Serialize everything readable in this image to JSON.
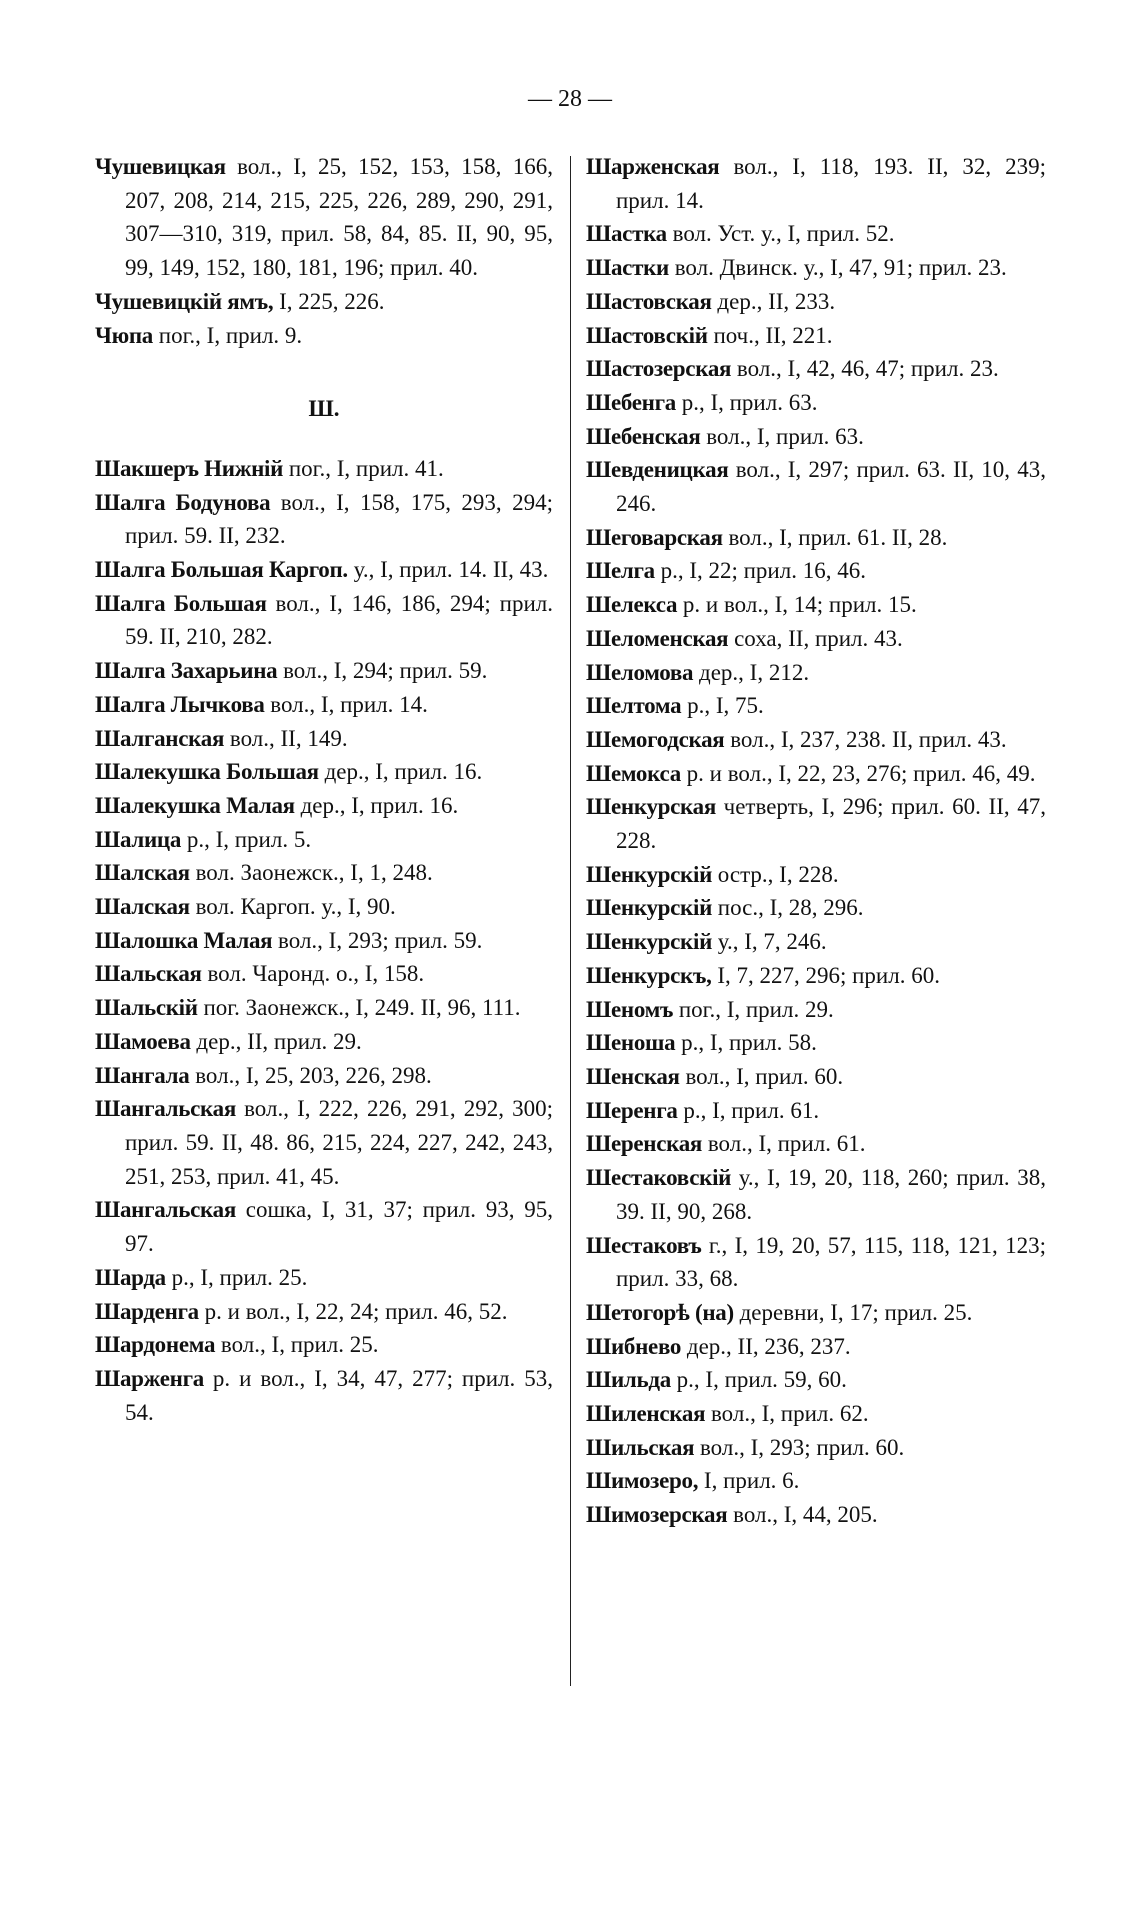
{
  "page_number": "— 28 —",
  "columns": [
    {
      "groups": [
        {
          "entries": [
            {
              "head": "Чушевицкая",
              "text": "вол., I, 25, 152, 153, 158, 166, 207, 208, 214, 215, 225, 226, 289, 290, 291, 307—310, 319, прил. 58, 84, 85. II, 90, 95, 99, 149, 152, 180, 181, 196; прил. 40."
            },
            {
              "head": "Чушевицкій ямъ,",
              "text": "I, 225, 226."
            },
            {
              "head": "Чюпа",
              "text": "пог., I, прил. 9."
            }
          ]
        },
        {
          "heading": "Ш.",
          "entries": [
            {
              "head": "Шакшеръ Нижній",
              "text": "пог., I, прил. 41."
            },
            {
              "head": "Шалга Бодунова",
              "text": "вол., I, 158, 175, 293, 294; прил. 59. II, 232."
            },
            {
              "head": "Шалга Большая Каргоп.",
              "text": "у., I, прил. 14. II, 43."
            },
            {
              "head": "Шалга Большая",
              "text": "вол., I, 146, 186, 294; прил. 59. II, 210, 282."
            },
            {
              "head": "Шалга Захарьина",
              "text": "вол., I, 294; прил. 59."
            },
            {
              "head": "Шалга Лычкова",
              "text": "вол., I, прил. 14."
            },
            {
              "head": "Шалганская",
              "text": "вол., II, 149."
            },
            {
              "head": "Шалекушка Большая",
              "text": "дер., I, прил. 16."
            },
            {
              "head": "Шалекушка Малая",
              "text": "дер., I, прил. 16."
            },
            {
              "head": "Шалица",
              "text": "р., I, прил. 5."
            },
            {
              "head": "Шалская",
              "text": "вол. Заонежск., I, 1, 248."
            },
            {
              "head": "Шалская",
              "text": "вол. Каргоп. у., I, 90."
            },
            {
              "head": "Шалошка Малая",
              "text": "вол., I, 293; прил. 59."
            },
            {
              "head": "Шальская",
              "text": "вол. Чаронд. о., I, 158."
            },
            {
              "head": "Шальскій",
              "text": "пог. Заонежск., I, 249. II, 96, 111."
            },
            {
              "head": "Шамоева",
              "text": "дер., II, прил. 29."
            },
            {
              "head": "Шангала",
              "text": "вол., I, 25, 203, 226, 298."
            },
            {
              "head": "Шангальская",
              "text": "вол., I, 222, 226, 291, 292, 300; прил. 59. II, 48. 86, 215, 224, 227, 242, 243, 251, 253, прил. 41, 45."
            },
            {
              "head": "Шангальская",
              "text": "сошка, I, 31, 37; прил. 93, 95, 97."
            },
            {
              "head": "Шарда",
              "text": "р., I, прил. 25."
            },
            {
              "head": "Шарденга",
              "text": "р. и вол., I, 22, 24; прил. 46, 52."
            },
            {
              "head": "Шардонема",
              "text": "вол., I, прил. 25."
            },
            {
              "head": "Шарженга",
              "text": "р. и вол., I, 34, 47, 277; прил. 53, 54."
            }
          ]
        }
      ]
    },
    {
      "groups": [
        {
          "entries": [
            {
              "head": "Шарженская",
              "text": "вол., I, 118, 193. II, 32, 239; прил. 14."
            },
            {
              "head": "Шастка",
              "text": "вол. Уст. у., I, прил. 52."
            },
            {
              "head": "Шастки",
              "text": "вол. Двинск. у., I, 47, 91; прил. 23."
            },
            {
              "head": "Шастовская",
              "text": "дер., II, 233."
            },
            {
              "head": "Шастовскій",
              "text": "поч., II, 221."
            },
            {
              "head": "Шастозерская",
              "text": "вол., I, 42, 46, 47; прил. 23."
            },
            {
              "head": "Шебенга",
              "text": "р., I, прил. 63."
            },
            {
              "head": "Шебенская",
              "text": "вол., I, прил. 63."
            },
            {
              "head": "Шевденицкая",
              "text": "вол., I, 297; прил. 63. II, 10, 43, 246."
            },
            {
              "head": "Шеговарская",
              "text": "вол., I, прил. 61. II, 28."
            },
            {
              "head": "Шелга",
              "text": "р., I, 22; прил. 16, 46."
            },
            {
              "head": "Шелекса",
              "text": "р. и вол., I, 14; прил. 15."
            },
            {
              "head": "Шеломенская",
              "text": "соха, II, прил. 43."
            },
            {
              "head": "Шеломова",
              "text": "дер., I, 212."
            },
            {
              "head": "Шелтома",
              "text": "р., I, 75."
            },
            {
              "head": "Шемогодская",
              "text": "вол., I, 237, 238. II, прил. 43."
            },
            {
              "head": "Шемокса",
              "text": "р. и вол., I, 22, 23, 276; прил. 46, 49."
            },
            {
              "head": "Шенкурская",
              "text": "четверть, I, 296; прил. 60. II, 47, 228."
            },
            {
              "head": "Шенкурскій",
              "text": "остр., I, 228."
            },
            {
              "head": "Шенкурскій",
              "text": "пос., I, 28, 296."
            },
            {
              "head": "Шенкурскій",
              "text": "у., I, 7, 246."
            },
            {
              "head": "Шенкурскъ,",
              "text": "I, 7, 227, 296; прил. 60."
            },
            {
              "head": "Шеномъ",
              "text": "пог., I, прил. 29."
            },
            {
              "head": "Шеноша",
              "text": "р., I, прил. 58."
            },
            {
              "head": "Шенская",
              "text": "вол., I, прил. 60."
            },
            {
              "head": "Шеренга",
              "text": "р., I, прил. 61."
            },
            {
              "head": "Шеренская",
              "text": "вол., I, прил. 61."
            },
            {
              "head": "Шестаковскій",
              "text": "у., I, 19, 20, 118, 260; прил. 38, 39. II, 90, 268."
            },
            {
              "head": "Шестаковъ",
              "text": "г., I, 19, 20, 57, 115, 118, 121, 123; прил. 33, 68."
            },
            {
              "head": "Шетогорѣ (на)",
              "text": "деревни, I, 17; прил. 25."
            },
            {
              "head": "Шибнево",
              "text": "дер., II, 236, 237."
            },
            {
              "head": "Шильда",
              "text": "р., I, прил. 59, 60."
            },
            {
              "head": "Шиленская",
              "text": "вол., I, прил. 62."
            },
            {
              "head": "Шильская",
              "text": "вол., I, 293; прил. 60."
            },
            {
              "head": "Шимозеро,",
              "text": "I, прил. 6."
            },
            {
              "head": "Шимозерская",
              "text": "вол., I, 44, 205."
            }
          ]
        }
      ]
    }
  ]
}
